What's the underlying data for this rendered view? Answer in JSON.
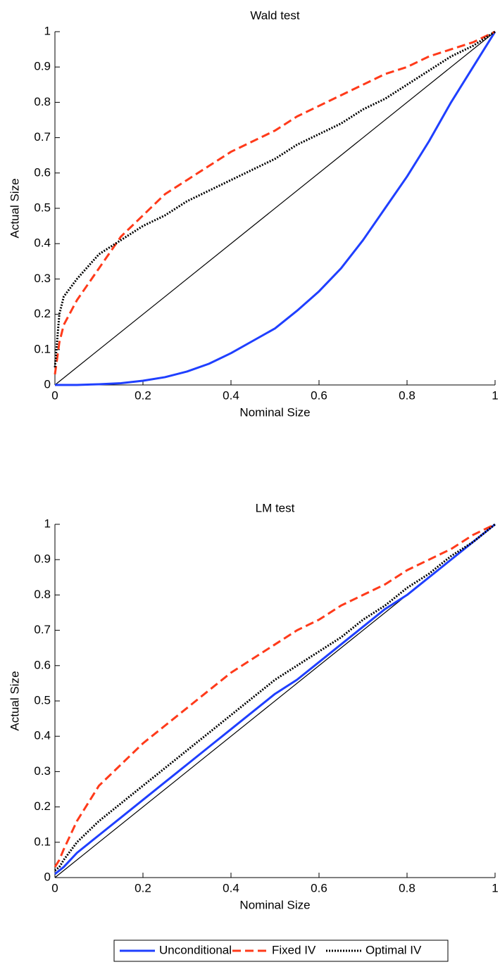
{
  "chart_data": [
    {
      "type": "line",
      "title": "Wald test",
      "xlabel": "Nominal Size",
      "ylabel": "Actual Size",
      "x": [
        0,
        0.01,
        0.02,
        0.05,
        0.1,
        0.15,
        0.2,
        0.25,
        0.3,
        0.35,
        0.4,
        0.45,
        0.5,
        0.55,
        0.6,
        0.65,
        0.7,
        0.75,
        0.8,
        0.85,
        0.9,
        0.95,
        1
      ],
      "series": [
        {
          "name": "Unconditional",
          "color": "#1f3fff",
          "dash": "solid",
          "values": [
            0,
            0,
            0,
            0,
            0.002,
            0.005,
            0.012,
            0.022,
            0.038,
            0.06,
            0.09,
            0.125,
            0.16,
            0.21,
            0.265,
            0.33,
            0.41,
            0.5,
            0.59,
            0.69,
            0.8,
            0.9,
            1
          ]
        },
        {
          "name": "Fixed IV",
          "color": "#ff3a1a",
          "dash": "dashed",
          "values": [
            0.03,
            0.12,
            0.17,
            0.24,
            0.33,
            0.42,
            0.48,
            0.54,
            0.58,
            0.62,
            0.66,
            0.69,
            0.72,
            0.76,
            0.79,
            0.82,
            0.85,
            0.88,
            0.9,
            0.93,
            0.95,
            0.97,
            1
          ]
        },
        {
          "name": "Optimal IV",
          "color": "#000000",
          "dash": "dotted",
          "values": [
            0.05,
            0.2,
            0.25,
            0.3,
            0.37,
            0.41,
            0.45,
            0.48,
            0.52,
            0.55,
            0.58,
            0.61,
            0.64,
            0.68,
            0.71,
            0.74,
            0.78,
            0.81,
            0.85,
            0.89,
            0.93,
            0.96,
            1
          ]
        }
      ],
      "reference_line": {
        "x": [
          0,
          1
        ],
        "y": [
          0,
          1
        ],
        "color": "#000000"
      },
      "xlim": [
        0,
        1
      ],
      "ylim": [
        0,
        1
      ],
      "xticks": [
        0,
        0.2,
        0.4,
        0.6,
        0.8,
        1
      ],
      "yticks": [
        0,
        0.1,
        0.2,
        0.3,
        0.4,
        0.5,
        0.6,
        0.7,
        0.8,
        0.9,
        1
      ],
      "legend": "bottom"
    },
    {
      "type": "line",
      "title": "LM test",
      "xlabel": "Nominal Size",
      "ylabel": "Actual Size",
      "x": [
        0,
        0.01,
        0.02,
        0.05,
        0.1,
        0.15,
        0.2,
        0.25,
        0.3,
        0.35,
        0.4,
        0.45,
        0.5,
        0.55,
        0.6,
        0.65,
        0.7,
        0.75,
        0.8,
        0.85,
        0.9,
        0.95,
        1
      ],
      "series": [
        {
          "name": "Unconditional",
          "color": "#1f3fff",
          "dash": "solid",
          "values": [
            0.01,
            0.02,
            0.03,
            0.07,
            0.12,
            0.17,
            0.22,
            0.27,
            0.32,
            0.37,
            0.42,
            0.47,
            0.52,
            0.56,
            0.61,
            0.66,
            0.71,
            0.76,
            0.8,
            0.85,
            0.9,
            0.95,
            1
          ]
        },
        {
          "name": "Fixed IV",
          "color": "#ff3a1a",
          "dash": "dashed",
          "values": [
            0.03,
            0.05,
            0.08,
            0.16,
            0.26,
            0.32,
            0.38,
            0.43,
            0.48,
            0.53,
            0.58,
            0.62,
            0.66,
            0.7,
            0.73,
            0.77,
            0.8,
            0.83,
            0.87,
            0.9,
            0.93,
            0.97,
            1
          ]
        },
        {
          "name": "Optimal IV",
          "color": "#000000",
          "dash": "dotted",
          "values": [
            0.02,
            0.03,
            0.05,
            0.1,
            0.16,
            0.21,
            0.26,
            0.31,
            0.36,
            0.41,
            0.46,
            0.51,
            0.56,
            0.6,
            0.64,
            0.68,
            0.73,
            0.77,
            0.82,
            0.86,
            0.91,
            0.95,
            1
          ]
        }
      ],
      "reference_line": {
        "x": [
          0,
          1
        ],
        "y": [
          0,
          1
        ],
        "color": "#000000"
      },
      "xlim": [
        0,
        1
      ],
      "ylim": [
        0,
        1
      ],
      "xticks": [
        0,
        0.2,
        0.4,
        0.6,
        0.8,
        1
      ],
      "yticks": [
        0,
        0.1,
        0.2,
        0.3,
        0.4,
        0.5,
        0.6,
        0.7,
        0.8,
        0.9,
        1
      ]
    }
  ]
}
